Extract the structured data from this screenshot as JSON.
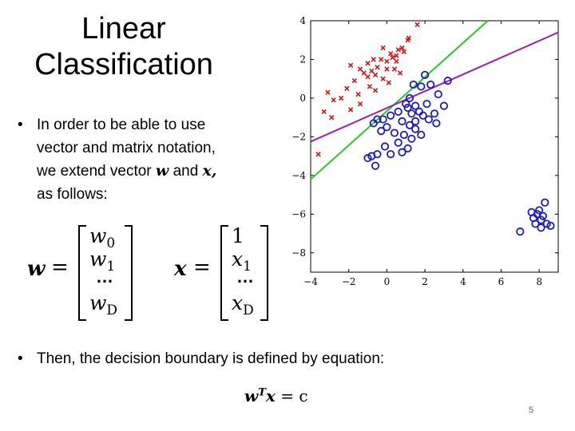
{
  "slide": {
    "title_line1": "Linear",
    "title_line2": "Classification",
    "bullet1": "In order to be able to use vector and matrix notation, we extend vector",
    "bullet1_w": "w",
    "bullet1_and": "and",
    "bullet1_x": "x,",
    "bullet1_end": "as follows:",
    "bullet2": "Then, the decision boundary is defined by equation:",
    "page_number": "5"
  },
  "vectors": {
    "w_label": "w",
    "w_entries": [
      "w",
      "w",
      "…",
      "w"
    ],
    "w_subs": [
      "0",
      "1",
      "",
      "D"
    ],
    "x_label": "x",
    "x_entries": [
      "1",
      "x",
      "…",
      "x"
    ],
    "x_subs": [
      "",
      "1",
      "",
      "D"
    ],
    "equals": "="
  },
  "equation": {
    "lhs_base": "w",
    "lhs_sup": "T",
    "lhs_x": "x",
    "rhs": "= c"
  },
  "chart_data": {
    "type": "scatter",
    "xlim": [
      -4,
      9
    ],
    "ylim": [
      -9,
      4
    ],
    "xticks": [
      "−4",
      "−2",
      "0",
      "2",
      "4",
      "6",
      "8"
    ],
    "yticks": [
      "4",
      "2",
      "0",
      "−2",
      "−4",
      "−6",
      "−8"
    ],
    "series": [
      {
        "marker": "x",
        "color": "#dd1111",
        "points": [
          [
            -1.9,
            1.7
          ],
          [
            -1.4,
            1.5
          ],
          [
            -1.0,
            1.8
          ],
          [
            -0.8,
            1.4
          ],
          [
            -0.5,
            1.6
          ],
          [
            -0.3,
            2.0
          ],
          [
            0.0,
            1.5
          ],
          [
            0.3,
            2.1
          ],
          [
            0.6,
            2.5
          ],
          [
            0.9,
            2.4
          ],
          [
            1.1,
            3.0
          ],
          [
            1.15,
            3.1
          ],
          [
            1.6,
            3.8
          ],
          [
            0.2,
            2.3
          ],
          [
            -0.2,
            2.6
          ],
          [
            0.5,
            1.9
          ],
          [
            -0.6,
            0.4
          ],
          [
            -0.9,
            0.6
          ],
          [
            -1.5,
            0.2
          ],
          [
            -1.7,
            0.9
          ],
          [
            -2.1,
            0.5
          ],
          [
            -2.4,
            0.0
          ],
          [
            -3.1,
            0.3
          ],
          [
            -2.8,
            -0.1
          ],
          [
            -3.3,
            -0.7
          ],
          [
            -2.9,
            -1.0
          ],
          [
            -1.9,
            -0.6
          ],
          [
            -1.4,
            -0.3
          ],
          [
            -0.6,
            1.2
          ],
          [
            -0.2,
            1.0
          ],
          [
            0.1,
            0.8
          ],
          [
            0.7,
            1.3
          ],
          [
            0.4,
            1.5
          ],
          [
            -1.0,
            1.1
          ],
          [
            -1.2,
            1.3
          ],
          [
            0.0,
            1.9
          ],
          [
            0.5,
            2.2
          ],
          [
            -0.7,
            2.0
          ],
          [
            0.8,
            2.6
          ],
          [
            -3.6,
            -2.9
          ]
        ]
      },
      {
        "marker": "o",
        "color": "#1a1ad0",
        "points": [
          [
            1.4,
            0.7
          ],
          [
            2.0,
            1.2
          ],
          [
            2.3,
            0.7
          ],
          [
            3.2,
            0.9
          ],
          [
            1.8,
            0.6
          ],
          [
            2.7,
            0.2
          ],
          [
            1.2,
            0.0
          ],
          [
            1.5,
            -0.4
          ],
          [
            2.1,
            -0.3
          ],
          [
            3.0,
            -0.4
          ],
          [
            1.1,
            -0.5
          ],
          [
            1.3,
            -0.8
          ],
          [
            1.7,
            -0.7
          ],
          [
            2.5,
            -0.8
          ],
          [
            0.6,
            -0.7
          ],
          [
            0.2,
            -0.9
          ],
          [
            -0.2,
            -1.1
          ],
          [
            -0.5,
            -1.1
          ],
          [
            0.8,
            -1.2
          ],
          [
            1.2,
            -1.4
          ],
          [
            1.5,
            -1.2
          ],
          [
            2.2,
            -1.1
          ],
          [
            2.6,
            -1.3
          ],
          [
            0.0,
            -1.5
          ],
          [
            0.4,
            -1.8
          ],
          [
            0.9,
            -1.9
          ],
          [
            1.3,
            -2.1
          ],
          [
            1.8,
            -1.9
          ],
          [
            -0.7,
            -1.3
          ],
          [
            -0.3,
            -1.7
          ],
          [
            0.6,
            -2.3
          ],
          [
            1.1,
            -2.6
          ],
          [
            -0.1,
            -2.5
          ],
          [
            -0.5,
            -2.9
          ],
          [
            -0.8,
            -3.0
          ],
          [
            -1.0,
            -3.1
          ],
          [
            0.2,
            -2.9
          ],
          [
            0.8,
            -2.8
          ],
          [
            -0.6,
            -3.5
          ],
          [
            1.5,
            -1.6
          ],
          [
            1.9,
            -0.9
          ],
          [
            1.0,
            -0.3
          ],
          [
            7.6,
            -5.9
          ],
          [
            7.9,
            -6.0
          ],
          [
            8.3,
            -5.4
          ],
          [
            7.7,
            -6.2
          ],
          [
            8.1,
            -6.3
          ],
          [
            8.0,
            -5.8
          ],
          [
            8.4,
            -6.5
          ],
          [
            8.1,
            -6.7
          ],
          [
            7.0,
            -6.9
          ],
          [
            7.8,
            -6.5
          ],
          [
            8.6,
            -6.6
          ],
          [
            8.2,
            -6.1
          ]
        ]
      }
    ],
    "lines": [
      {
        "color": "#22cc22",
        "from": [
          -4,
          -4.2
        ],
        "to": [
          5.3,
          4.0
        ]
      },
      {
        "color": "#a020b0",
        "from": [
          -4,
          -2.25
        ],
        "to": [
          9,
          3.4
        ]
      }
    ]
  }
}
